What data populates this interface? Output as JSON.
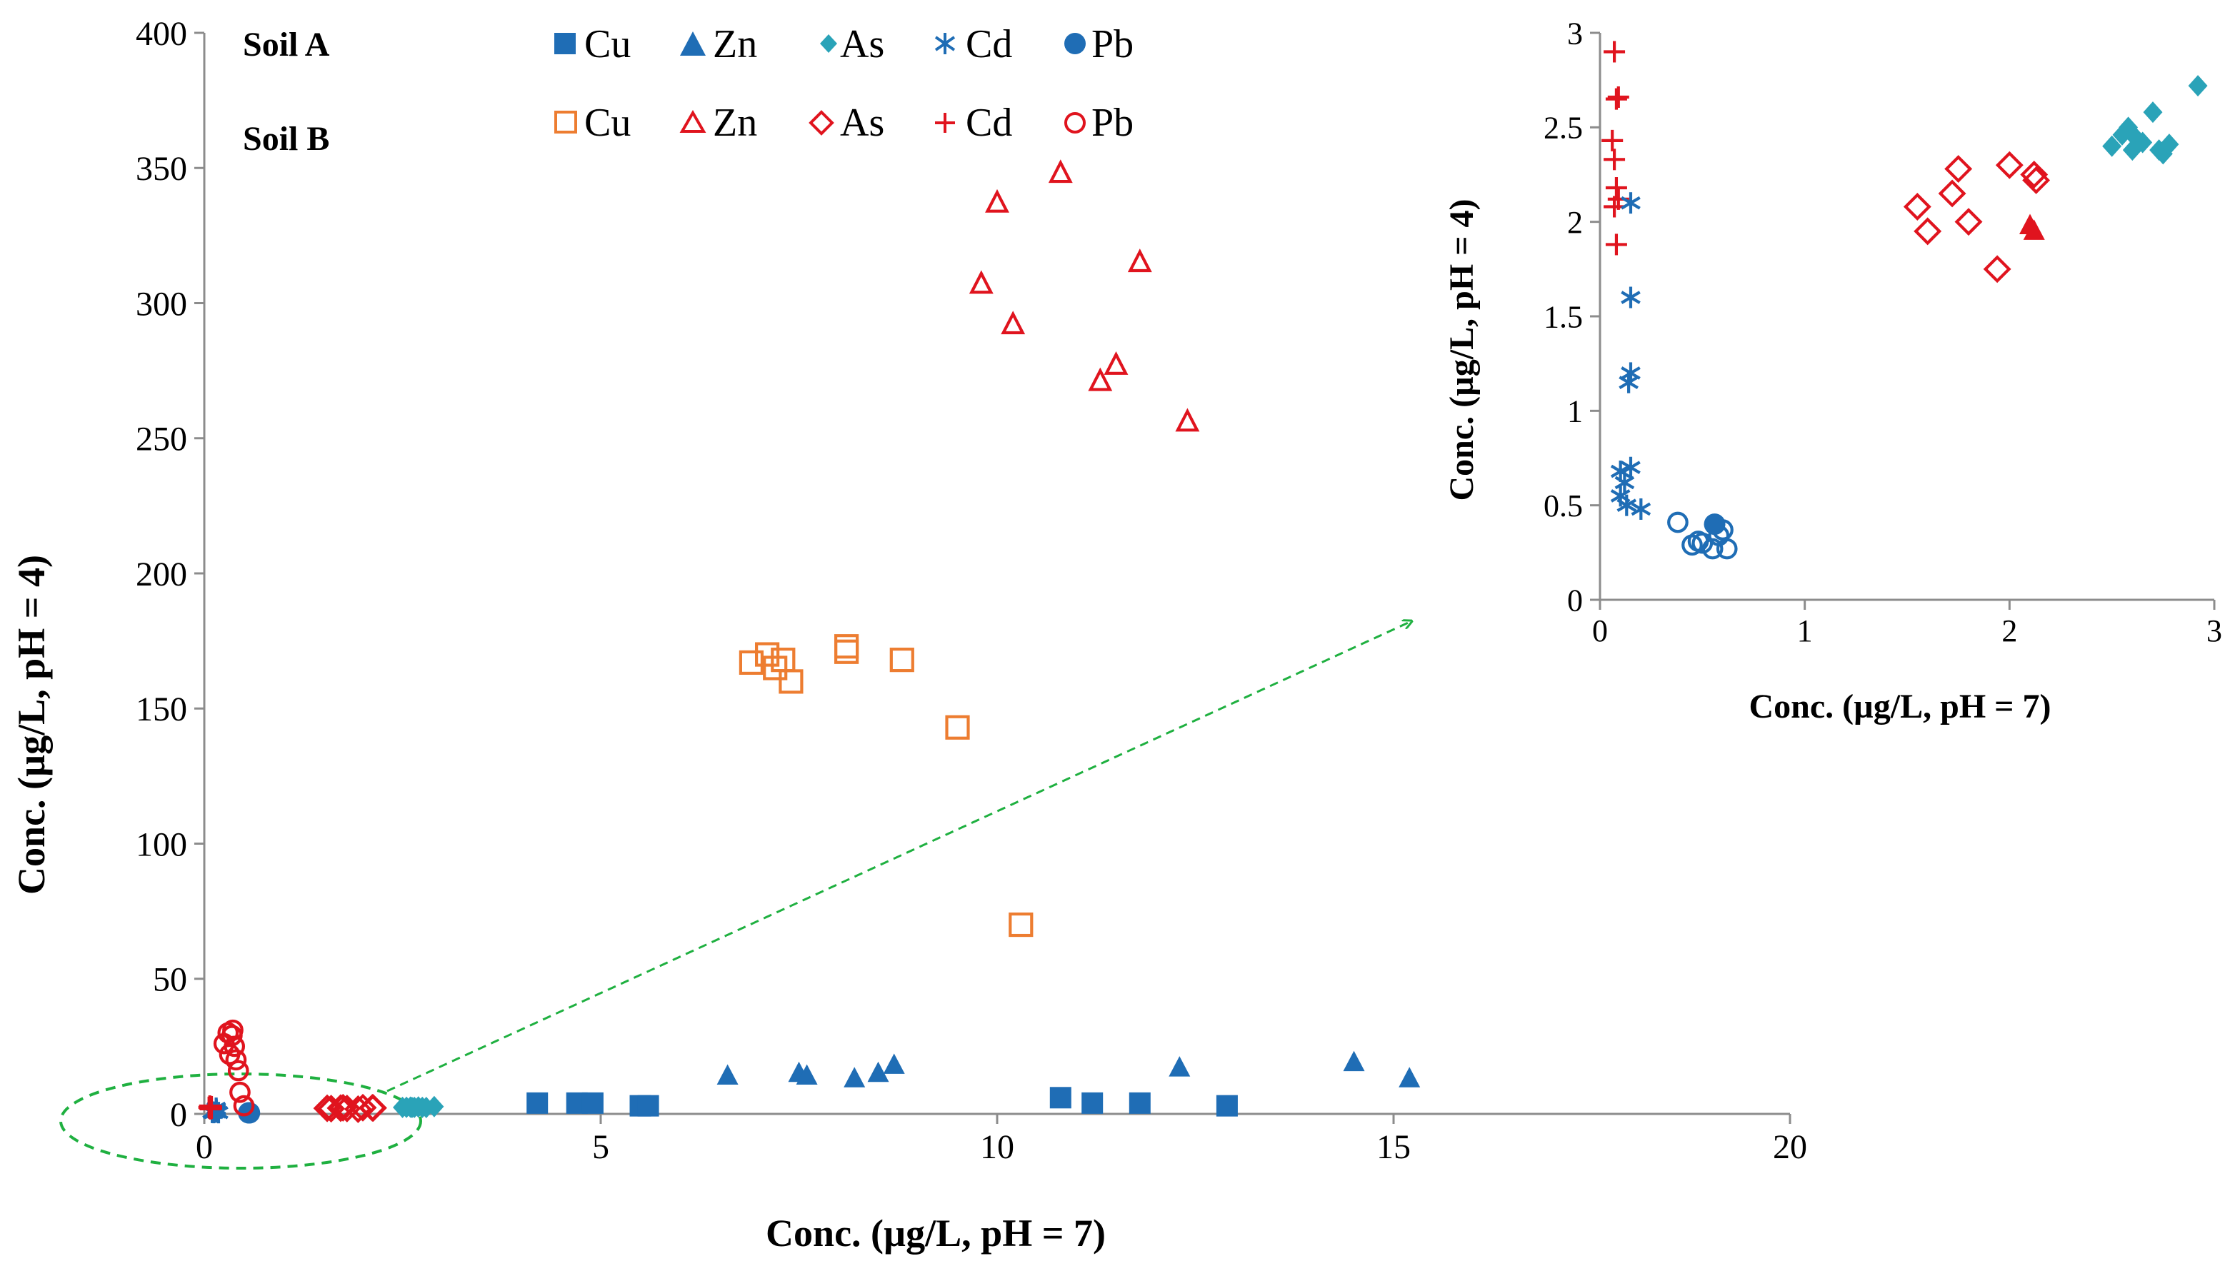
{
  "chart_data": [
    {
      "type": "scatter",
      "title": "",
      "xlabel": "Conc. (µg/L, pH = 7)",
      "ylabel": "Conc. (µg/L, pH = 4)",
      "xlim": [
        0,
        20
      ],
      "ylim": [
        0,
        400
      ],
      "xticks": [
        "0",
        "5",
        "10",
        "15",
        "20"
      ],
      "yticks": [
        "0",
        "50",
        "100",
        "150",
        "200",
        "250",
        "300",
        "350",
        "400"
      ],
      "legend": {
        "placement": "top",
        "groups": [
          {
            "label": "Soil A",
            "entries": [
              "Cu",
              "Zn",
              "As",
              "Cd",
              "Pb"
            ]
          },
          {
            "label": "Soil B",
            "entries": [
              "Cu",
              "Zn",
              "As",
              "Cd",
              "Pb"
            ]
          }
        ]
      },
      "series": [
        {
          "name": "Cu",
          "soil": "Soil A",
          "marker": "filled-square",
          "color": "#1F6DB5",
          "x": [
            4.2,
            4.7,
            4.9,
            5.5,
            5.6,
            10.8,
            11.2,
            11.8,
            12.9
          ],
          "y": [
            4,
            4,
            4,
            3,
            3,
            6,
            4,
            4,
            3
          ]
        },
        {
          "name": "Zn",
          "soil": "Soil A",
          "marker": "filled-triangle",
          "color": "#1F6DB5",
          "x": [
            6.6,
            7.5,
            7.6,
            8.2,
            8.5,
            8.7,
            12.3,
            14.5,
            15.2
          ],
          "y": [
            14,
            15,
            14,
            13,
            15,
            18,
            17,
            19,
            13
          ]
        },
        {
          "name": "As",
          "soil": "Soil A",
          "marker": "filled-diamond",
          "color": "#2AA3B8",
          "x": [
            2.5,
            2.55,
            2.6,
            2.62,
            2.65,
            2.7,
            2.75,
            2.8,
            2.9
          ],
          "y": [
            2.4,
            2.45,
            2.5,
            2.38,
            2.42,
            2.58,
            2.4,
            2.38,
            2.72
          ]
        },
        {
          "name": "Cd",
          "soil": "Soil A",
          "marker": "asterisk",
          "color": "#1F6DB5",
          "x": [
            0.15,
            0.15,
            0.15,
            0.15,
            0.1,
            0.12,
            0.15,
            0.1,
            0.12,
            0.18
          ],
          "y": [
            2.1,
            1.6,
            1.2,
            1.15,
            0.68,
            0.62,
            0.7,
            0.55,
            0.5,
            0.48
          ]
        },
        {
          "name": "Pb",
          "soil": "Soil A",
          "marker": "filled-circle",
          "color": "#1F6DB5",
          "x": [
            0.56,
            0.57
          ],
          "y": [
            0.4,
            0.38
          ]
        },
        {
          "name": "Cu",
          "soil": "Soil B",
          "marker": "open-square",
          "color": "#ED7D31",
          "x": [
            6.9,
            7.1,
            7.2,
            7.3,
            7.4,
            8.1,
            8.1,
            8.8,
            9.5,
            10.3
          ],
          "y": [
            167,
            170,
            165,
            168,
            160,
            173,
            171,
            168,
            143,
            70
          ]
        },
        {
          "name": "Zn",
          "soil": "Soil B",
          "marker": "open-triangle",
          "color": "#E0141E",
          "x": [
            9.8,
            10.0,
            10.2,
            10.8,
            11.3,
            11.5,
            11.8,
            12.4
          ],
          "y": [
            307,
            337,
            292,
            348,
            271,
            277,
            315,
            256
          ]
        },
        {
          "name": "As",
          "soil": "Soil B",
          "marker": "open-diamond",
          "color": "#E0141E",
          "x": [
            1.55,
            1.6,
            1.72,
            1.75,
            1.8,
            1.94,
            2.0,
            2.12,
            2.13
          ],
          "y": [
            2.08,
            1.95,
            2.15,
            2.28,
            2.0,
            1.75,
            2.3,
            2.25,
            2.22
          ]
        },
        {
          "name": "Cd",
          "soil": "Soil B",
          "marker": "plus",
          "color": "#E0141E",
          "x": [
            0.07,
            0.08,
            0.09,
            0.06,
            0.07,
            0.08,
            0.09,
            0.07,
            0.08
          ],
          "y": [
            2.9,
            2.65,
            2.66,
            2.43,
            2.33,
            2.18,
            2.12,
            2.08,
            1.88
          ]
        },
        {
          "name": "Pb",
          "soil": "Soil B",
          "marker": "open-circle",
          "color": "#E0141E",
          "x": [
            0.25,
            0.3,
            0.32,
            0.35,
            0.36,
            0.38,
            0.4,
            0.43,
            0.45,
            0.5
          ],
          "y": [
            26,
            30,
            22,
            29,
            31,
            25,
            20,
            16,
            8,
            3
          ]
        }
      ],
      "annotations": [
        {
          "type": "dashed-ellipse",
          "color": "#1FB040",
          "meaning": "magnified low-concentration region"
        },
        {
          "type": "dashed-arrow",
          "color": "#1FB040",
          "meaning": "points to inset"
        }
      ]
    },
    {
      "type": "scatter",
      "title": "",
      "xlabel": "Conc. (µg/L, pH = 7)",
      "ylabel": "Conc. (µg/L, pH = 4)",
      "xlim": [
        0,
        3
      ],
      "ylim": [
        0,
        3
      ],
      "xticks": [
        "0",
        "1",
        "2",
        "3"
      ],
      "yticks": [
        "0",
        "0.5",
        "1",
        "1.5",
        "2",
        "2.5",
        "3"
      ],
      "series": [
        {
          "name": "As",
          "soil": "Soil A",
          "marker": "filled-diamond",
          "color": "#2AA3B8",
          "x": [
            2.5,
            2.55,
            2.58,
            2.6,
            2.62,
            2.65,
            2.7,
            2.73,
            2.75,
            2.78,
            2.92
          ],
          "y": [
            2.4,
            2.46,
            2.5,
            2.38,
            2.44,
            2.42,
            2.58,
            2.38,
            2.36,
            2.41,
            2.72
          ]
        },
        {
          "name": "Zn",
          "soil": "Soil A",
          "marker": "filled-triangle",
          "color": "#E0141E",
          "x": [
            2.1,
            2.12
          ],
          "y": [
            1.98,
            1.95
          ]
        },
        {
          "name": "As",
          "soil": "Soil B",
          "marker": "open-diamond",
          "color": "#E0141E",
          "x": [
            1.55,
            1.6,
            1.72,
            1.75,
            1.8,
            1.94,
            2.0,
            2.12,
            2.13
          ],
          "y": [
            2.08,
            1.95,
            2.15,
            2.28,
            2.0,
            1.75,
            2.3,
            2.25,
            2.22
          ]
        },
        {
          "name": "Cd",
          "soil": "Soil B",
          "marker": "plus",
          "color": "#E0141E",
          "x": [
            0.07,
            0.08,
            0.09,
            0.06,
            0.07,
            0.08,
            0.09,
            0.07,
            0.08
          ],
          "y": [
            2.9,
            2.65,
            2.66,
            2.43,
            2.33,
            2.18,
            2.12,
            2.08,
            1.88
          ]
        },
        {
          "name": "Cd",
          "soil": "Soil A",
          "marker": "asterisk",
          "color": "#1F6DB5",
          "x": [
            0.15,
            0.15,
            0.15,
            0.14,
            0.1,
            0.12,
            0.15,
            0.1,
            0.13,
            0.2
          ],
          "y": [
            2.1,
            1.6,
            1.2,
            1.15,
            0.68,
            0.62,
            0.7,
            0.55,
            0.5,
            0.48
          ]
        },
        {
          "name": "Pb",
          "soil": "Soil B",
          "marker": "open-circle",
          "color": "#1F6DB5",
          "x": [
            0.38,
            0.45,
            0.48,
            0.5,
            0.55,
            0.58,
            0.6,
            0.62
          ],
          "y": [
            0.41,
            0.29,
            0.31,
            0.3,
            0.27,
            0.34,
            0.37,
            0.27
          ]
        },
        {
          "name": "Pb",
          "soil": "Soil A",
          "marker": "filled-circle",
          "color": "#1F6DB5",
          "x": [
            0.56
          ],
          "y": [
            0.4
          ]
        }
      ]
    }
  ]
}
